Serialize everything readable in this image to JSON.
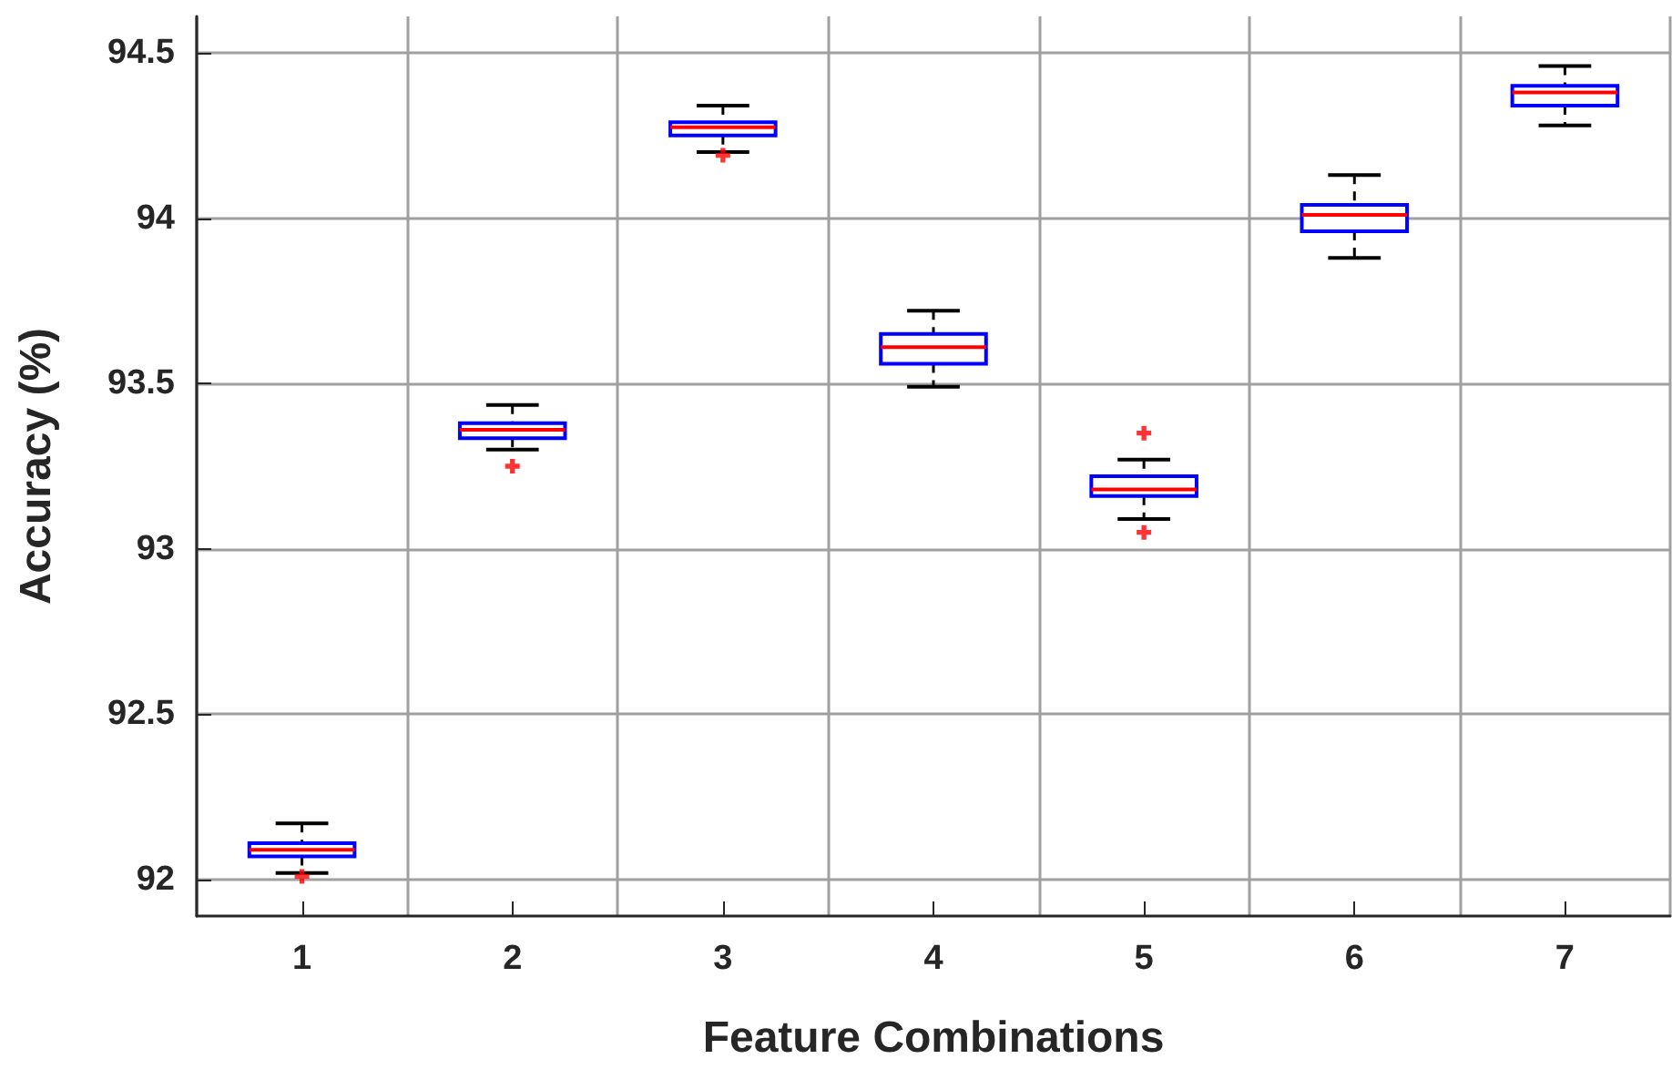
{
  "chart_data": {
    "type": "box",
    "xlabel": "Feature Combinations",
    "ylabel": "Accuracy (%)",
    "categories": [
      "1",
      "2",
      "3",
      "4",
      "5",
      "6",
      "7"
    ],
    "series": [
      {
        "color": "#0000ff",
        "boxes": [
          {
            "low": 92.02,
            "q1": 92.07,
            "median": 92.09,
            "q3": 92.11,
            "high": 92.17,
            "outliers": [
              92.01
            ]
          },
          {
            "low": 93.3,
            "q1": 93.335,
            "median": 93.36,
            "q3": 93.38,
            "high": 93.435,
            "outliers": [
              93.25
            ]
          },
          {
            "low": 94.2,
            "q1": 94.25,
            "median": 94.275,
            "q3": 94.29,
            "high": 94.34,
            "outliers": [
              94.19
            ]
          },
          {
            "low": 93.49,
            "q1": 93.56,
            "median": 93.61,
            "q3": 93.65,
            "high": 93.72
          },
          {
            "low": 93.09,
            "q1": 93.16,
            "median": 93.18,
            "q3": 93.22,
            "high": 93.27,
            "outliers": [
              93.35,
              93.05
            ]
          },
          {
            "low": 93.88,
            "q1": 93.96,
            "median": 94.01,
            "q3": 94.04,
            "high": 94.13
          },
          {
            "low": 94.28,
            "q1": 94.34,
            "median": 94.38,
            "q3": 94.4,
            "high": 94.46
          }
        ]
      }
    ],
    "ylim": [
      91.89,
      94.61
    ],
    "yticks": [
      92,
      92.5,
      93,
      93.5,
      94,
      94.5
    ],
    "grid": true
  }
}
